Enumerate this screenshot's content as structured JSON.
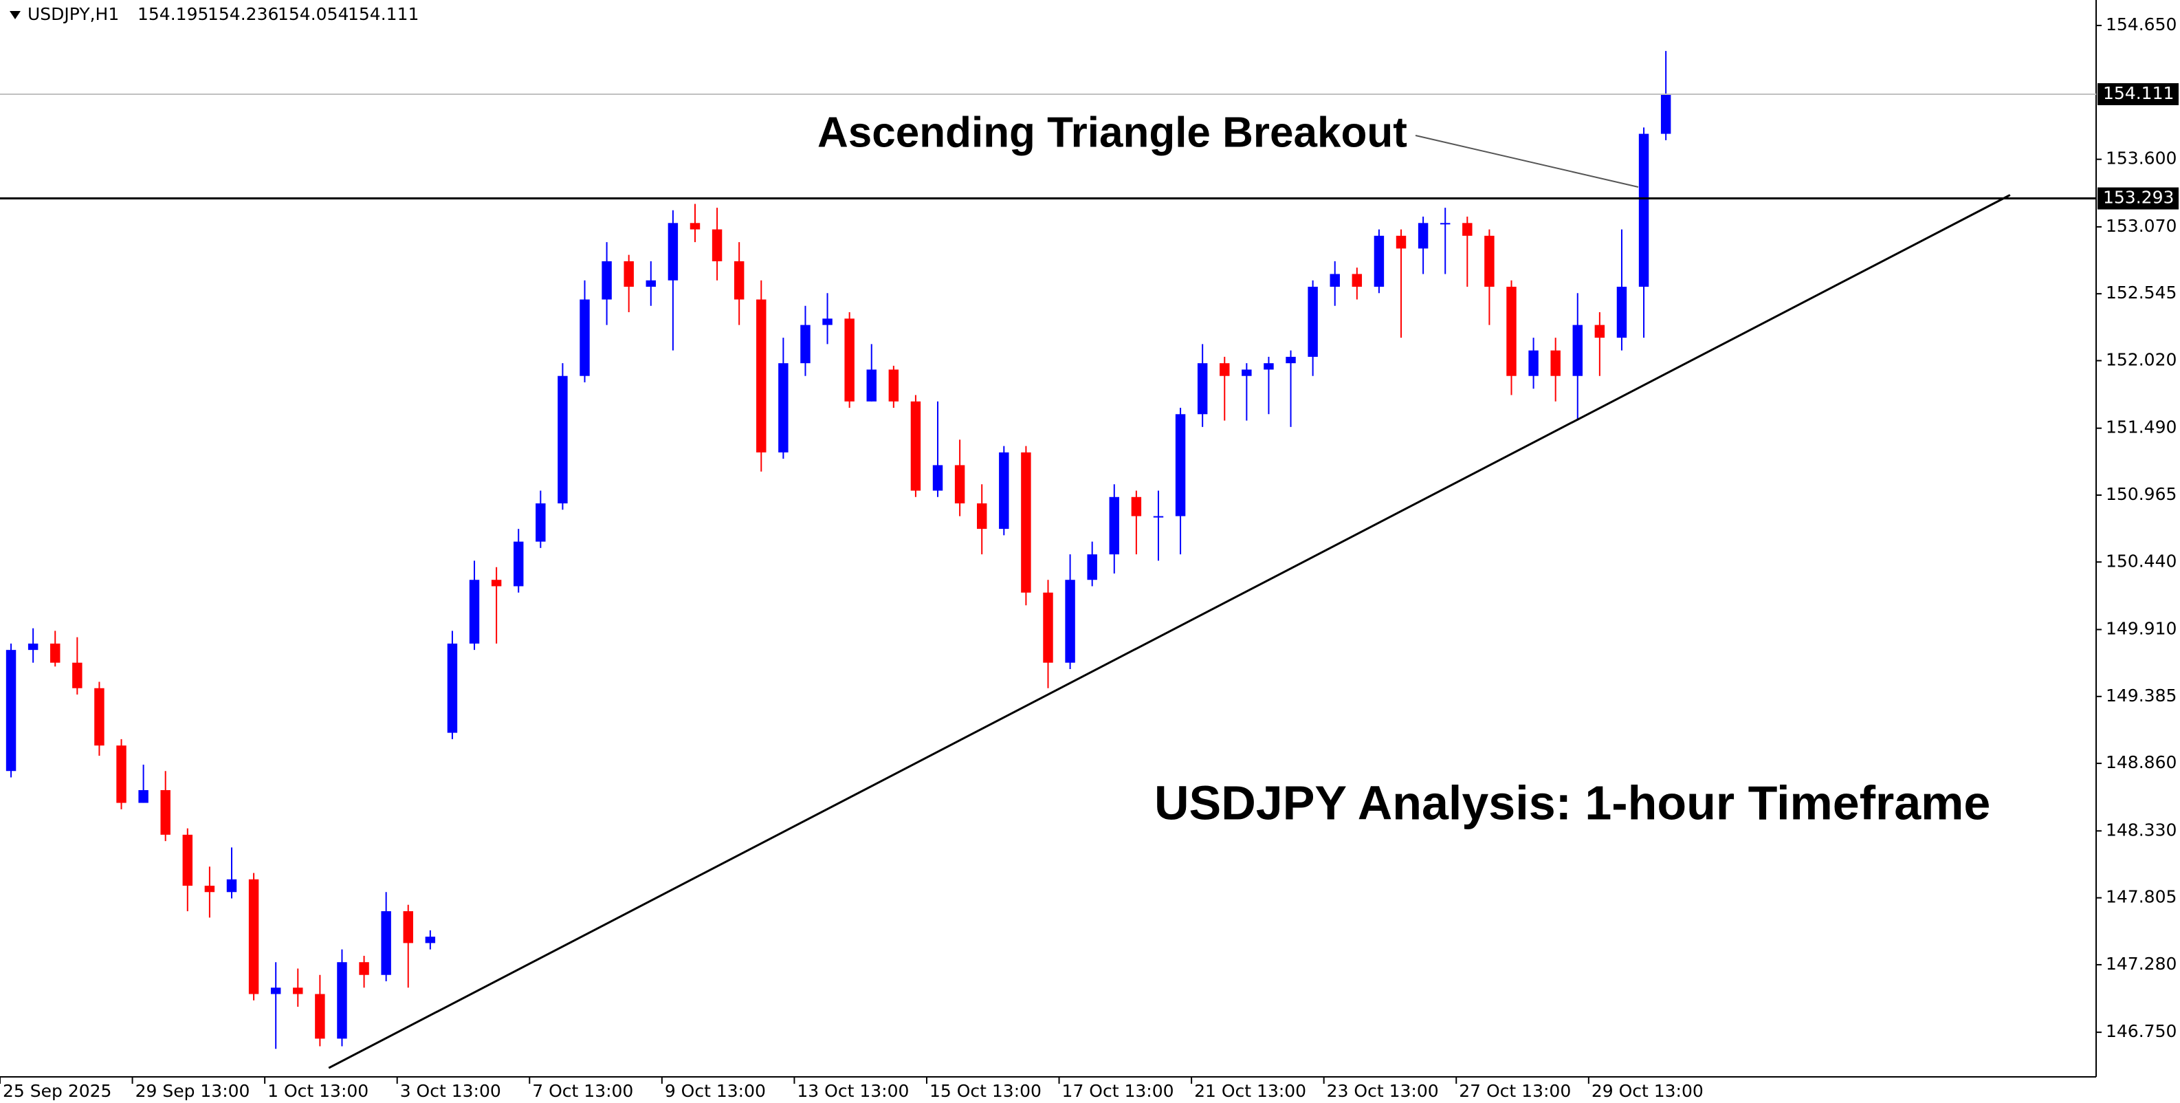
{
  "chart_data": {
    "type": "candlestick",
    "header": {
      "symbol": "USDJPY,H1",
      "open": 154.195,
      "high": 154.236,
      "low": 154.054,
      "close": 154.111
    },
    "annotations": [
      "Ascending Triangle Breakout",
      "USDJPY Analysis: 1-hour Timeframe"
    ],
    "categories": [
      "25 Sep 2025",
      null,
      null,
      null,
      null,
      null,
      "29 Sep 13:00",
      null,
      null,
      null,
      null,
      null,
      "1 Oct 13:00",
      null,
      null,
      null,
      null,
      null,
      "3 Oct 13:00",
      null,
      null,
      null,
      null,
      null,
      "7 Oct 13:00",
      null,
      null,
      null,
      null,
      null,
      "9 Oct 13:00",
      null,
      null,
      null,
      null,
      null,
      "13 Oct 13:00",
      null,
      null,
      null,
      null,
      null,
      "15 Oct 13:00",
      null,
      null,
      null,
      null,
      null,
      "17 Oct 13:00",
      null,
      null,
      null,
      null,
      null,
      "21 Oct 13:00",
      null,
      null,
      null,
      null,
      null,
      "23 Oct 13:00",
      null,
      null,
      null,
      null,
      null,
      "27 Oct 13:00",
      null,
      null,
      null,
      null,
      null,
      "29 Oct 13:00",
      null,
      null,
      null
    ],
    "open": [
      148.8,
      149.75,
      149.8,
      149.65,
      149.45,
      149.0,
      148.55,
      148.65,
      148.3,
      147.9,
      147.85,
      147.95,
      147.05,
      147.1,
      147.05,
      146.7,
      147.3,
      147.2,
      147.7,
      147.45,
      149.1,
      149.8,
      150.3,
      150.25,
      150.6,
      150.9,
      151.9,
      152.5,
      152.8,
      152.6,
      152.65,
      153.1,
      153.05,
      152.8,
      152.5,
      151.3,
      152.0,
      152.3,
      152.35,
      151.7,
      151.95,
      151.7,
      151.0,
      151.2,
      150.9,
      150.7,
      151.3,
      150.2,
      149.65,
      150.3,
      150.5,
      150.95,
      150.8,
      150.8,
      151.6,
      152.0,
      151.9,
      151.95,
      152.0,
      152.05,
      152.6,
      152.7,
      152.6,
      153.0,
      152.9,
      153.1,
      153.1,
      153.0,
      152.6,
      151.9,
      152.1,
      151.9,
      152.3,
      152.2,
      152.6,
      153.8
    ],
    "high": [
      149.8,
      149.92,
      149.9,
      149.85,
      149.5,
      149.05,
      148.85,
      148.8,
      148.35,
      148.05,
      148.2,
      148.0,
      147.3,
      147.25,
      147.2,
      147.4,
      147.35,
      147.85,
      147.75,
      147.55,
      149.9,
      150.45,
      150.4,
      150.7,
      151.0,
      152.0,
      152.65,
      152.95,
      152.85,
      152.8,
      153.2,
      153.25,
      153.22,
      152.95,
      152.65,
      152.2,
      152.45,
      152.55,
      152.4,
      152.15,
      151.98,
      151.75,
      151.7,
      151.4,
      151.05,
      151.35,
      151.35,
      150.3,
      150.5,
      150.6,
      151.05,
      151.0,
      151.0,
      151.65,
      152.15,
      152.05,
      152.0,
      152.05,
      152.1,
      152.65,
      152.8,
      152.75,
      153.05,
      153.05,
      153.15,
      153.22,
      153.15,
      153.05,
      152.65,
      152.2,
      152.2,
      152.55,
      152.4,
      153.05,
      153.85,
      154.45
    ],
    "low": [
      148.75,
      149.65,
      149.62,
      149.4,
      148.92,
      148.5,
      148.55,
      148.25,
      147.7,
      147.65,
      147.8,
      147.0,
      146.62,
      146.95,
      146.64,
      146.64,
      147.1,
      147.15,
      147.1,
      147.4,
      149.05,
      149.75,
      149.8,
      150.2,
      150.55,
      150.85,
      151.85,
      152.3,
      152.4,
      152.45,
      152.1,
      152.95,
      152.65,
      152.3,
      151.15,
      151.25,
      151.9,
      152.15,
      151.65,
      151.7,
      151.65,
      150.95,
      150.95,
      150.8,
      150.5,
      150.65,
      150.1,
      149.45,
      149.6,
      150.25,
      150.35,
      150.5,
      150.45,
      150.5,
      151.5,
      151.55,
      151.55,
      151.6,
      151.5,
      151.9,
      152.45,
      152.5,
      152.55,
      152.2,
      152.7,
      152.7,
      152.6,
      152.3,
      151.75,
      151.8,
      151.7,
      151.55,
      151.9,
      152.1,
      152.2,
      153.75
    ],
    "close": [
      149.75,
      149.8,
      149.65,
      149.45,
      149.0,
      148.55,
      148.65,
      148.3,
      147.9,
      147.85,
      147.95,
      147.05,
      147.1,
      147.05,
      146.7,
      147.3,
      147.2,
      147.7,
      147.45,
      147.5,
      149.8,
      150.3,
      150.25,
      150.6,
      150.9,
      151.9,
      152.5,
      152.8,
      152.6,
      152.65,
      153.1,
      153.05,
      152.8,
      152.5,
      151.3,
      152.0,
      152.3,
      152.35,
      151.7,
      151.95,
      151.7,
      151.0,
      151.2,
      150.9,
      150.7,
      151.3,
      150.2,
      149.65,
      150.3,
      150.5,
      150.95,
      150.8,
      150.8,
      151.6,
      152.0,
      151.9,
      151.95,
      152.0,
      152.05,
      152.6,
      152.7,
      152.6,
      153.0,
      152.9,
      153.1,
      153.1,
      153.0,
      152.6,
      151.9,
      152.1,
      151.9,
      152.3,
      152.2,
      152.6,
      153.8,
      154.111
    ],
    "up_color": "#0000ff",
    "down_color": "#ff0000",
    "ylim": [
      146.4,
      154.85
    ],
    "yticks": [
      {
        "value": 154.65,
        "label": "154.650"
      },
      {
        "value": 153.6,
        "label": "153.600"
      },
      {
        "value": 153.07,
        "label": "153.070"
      },
      {
        "value": 152.545,
        "label": "152.545"
      },
      {
        "value": 152.02,
        "label": "152.020"
      },
      {
        "value": 151.49,
        "label": "151.490"
      },
      {
        "value": 150.965,
        "label": "150.965"
      },
      {
        "value": 150.44,
        "label": "150.440"
      },
      {
        "value": 149.91,
        "label": "149.910"
      },
      {
        "value": 149.385,
        "label": "149.385"
      },
      {
        "value": 148.86,
        "label": "148.860"
      },
      {
        "value": 148.33,
        "label": "148.330"
      },
      {
        "value": 147.805,
        "label": "147.805"
      },
      {
        "value": 147.28,
        "label": "147.280"
      },
      {
        "value": 146.75,
        "label": "146.750"
      }
    ],
    "resistance": 153.293,
    "price_line": 154.111,
    "trendline": {
      "x": [
        14.9,
        91.1
      ],
      "y": [
        146.47,
        153.32
      ]
    }
  }
}
